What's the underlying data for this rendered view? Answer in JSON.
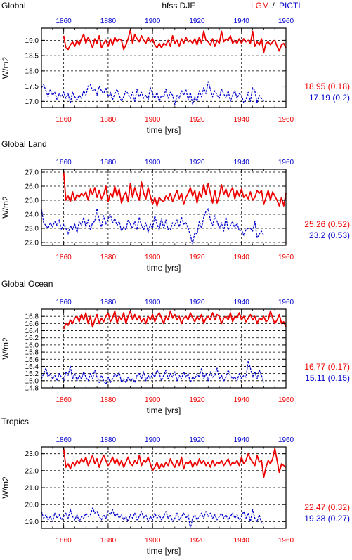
{
  "header": {
    "left": "Global",
    "center": "hfss DJF",
    "legend_lgm": "LGM",
    "legend_sep": "/",
    "legend_pictl": "PICTL"
  },
  "colors": {
    "lgm": "#ee0000",
    "pictl": "#0000cc",
    "text": "#000000",
    "grid": "#000000"
  },
  "chart_data": [
    {
      "type": "line",
      "title": "Global",
      "xlabel": "time [yrs]",
      "ylabel": "W/m2",
      "xlim": [
        1850,
        1960
      ],
      "ylim": [
        16.8,
        19.4
      ],
      "xticks": [
        "1860",
        "1880",
        "1900",
        "1920",
        "1940",
        "1960"
      ],
      "yticks": [
        "17.0",
        "17.5",
        "18.0",
        "18.5",
        "19.0"
      ],
      "grid": true,
      "series": [
        {
          "name": "LGM",
          "x_start": 1860,
          "values": [
            19.15,
            18.75,
            18.7,
            18.85,
            18.95,
            18.8,
            19.0,
            18.85,
            19.05,
            19.2,
            18.9,
            19.1,
            18.95,
            18.75,
            19.05,
            18.9,
            19.15,
            18.75,
            18.9,
            19.0,
            18.8,
            19.05,
            18.85,
            19.1,
            18.95,
            19.05,
            19.0,
            18.7,
            18.85,
            19.05,
            19.35,
            18.9,
            19.2,
            19.05,
            18.95,
            19.15,
            19.0,
            18.9,
            19.1,
            18.95,
            19.05,
            18.85,
            18.75,
            18.9,
            18.75,
            18.9,
            18.85,
            19.0,
            18.8,
            19.15,
            18.9,
            19.0,
            18.8,
            19.05,
            18.9,
            19.1,
            18.95,
            19.0,
            18.9,
            19.05,
            18.85,
            19.1,
            18.9,
            19.3,
            19.0,
            18.95,
            18.85,
            19.05,
            18.8,
            19.0,
            18.9,
            19.3,
            18.95,
            19.05,
            19.0,
            19.15,
            18.9,
            19.0,
            18.9,
            19.05,
            18.9,
            19.05,
            18.95,
            19.0,
            18.9,
            19.3,
            18.8,
            18.95,
            18.85,
            19.05,
            18.6,
            18.9,
            18.95,
            18.85,
            18.95,
            19.0,
            18.8,
            18.65,
            18.85,
            18.9,
            18.75
          ]
        },
        {
          "name": "PICTL",
          "x_start": 1850,
          "values": [
            17.45,
            17.55,
            17.35,
            17.15,
            17.4,
            17.2,
            17.3,
            17.05,
            17.25,
            17.15,
            17.3,
            17.1,
            17.25,
            16.95,
            17.3,
            17.15,
            17.05,
            17.2,
            17.1,
            17.35,
            17.2,
            17.5,
            17.55,
            17.35,
            17.4,
            17.2,
            17.5,
            17.35,
            17.25,
            17.45,
            17.15,
            17.3,
            17.05,
            17.25,
            17.4,
            17.2,
            17.0,
            17.15,
            17.35,
            17.25,
            17.1,
            17.3,
            17.0,
            17.4,
            17.15,
            17.3,
            17.1,
            17.2,
            17.05,
            17.45,
            17.25,
            17.1,
            17.3,
            17.0,
            17.2,
            17.15,
            17.4,
            17.1,
            17.3,
            17.2,
            16.9,
            17.2,
            17.1,
            17.35,
            17.2,
            17.4,
            17.05,
            17.3,
            16.9,
            17.15,
            17.0,
            17.35,
            17.15,
            17.45,
            17.25,
            17.65,
            17.4,
            17.15,
            17.35,
            17.2,
            17.1,
            17.4,
            17.25,
            17.1,
            17.35,
            17.0,
            17.2,
            17.35,
            17.1,
            17.25,
            17.2,
            16.95,
            17.05,
            17.3,
            17.0,
            17.45,
            17.35,
            16.95,
            17.2,
            17.1,
            17.0
          ]
        }
      ],
      "stats": {
        "lgm": "18.95 (0.18)",
        "pictl": "17.19 (0.2)"
      }
    },
    {
      "type": "line",
      "title": "Global Land",
      "xlabel": "time [yrs]",
      "ylabel": "W/m2",
      "xlim": [
        1850,
        1960
      ],
      "ylim": [
        21.8,
        27.2
      ],
      "xticks": [
        "1860",
        "1880",
        "1900",
        "1920",
        "1940",
        "1960"
      ],
      "yticks": [
        "22.0",
        "23.0",
        "24.0",
        "25.0",
        "26.0",
        "27.0"
      ],
      "grid": true,
      "series": [
        {
          "name": "LGM",
          "x_start": 1860,
          "values": [
            27.0,
            25.0,
            25.3,
            24.9,
            25.6,
            25.0,
            25.4,
            25.2,
            25.5,
            25.3,
            25.6,
            25.0,
            25.8,
            25.4,
            25.9,
            25.2,
            25.7,
            25.1,
            25.4,
            26.0,
            24.9,
            25.5,
            25.2,
            26.0,
            25.3,
            25.8,
            24.8,
            25.3,
            25.6,
            24.9,
            26.2,
            25.2,
            25.9,
            25.4,
            25.0,
            26.3,
            25.5,
            25.1,
            25.9,
            25.3,
            24.7,
            25.2,
            24.6,
            25.2,
            25.0,
            24.9,
            25.3,
            25.1,
            25.5,
            24.9,
            25.3,
            25.7,
            25.1,
            25.5,
            24.7,
            25.2,
            25.5,
            25.9,
            25.3,
            25.7,
            24.8,
            25.6,
            25.2,
            26.1,
            25.4,
            26.2,
            25.5,
            24.8,
            25.7,
            24.8,
            25.3,
            26.1,
            25.4,
            25.8,
            25.2,
            25.6,
            25.9,
            25.1,
            25.7,
            25.3,
            25.8,
            25.2,
            25.4,
            25.1,
            25.6,
            25.0,
            25.2,
            25.7,
            25.5,
            25.7,
            24.7,
            25.2,
            25.7,
            25.0,
            25.6,
            25.3,
            25.0,
            24.6,
            25.2,
            24.6,
            25.5
          ]
        },
        {
          "name": "PICTL",
          "x_start": 1850,
          "values": [
            24.4,
            23.4,
            23.2,
            23.0,
            23.4,
            23.1,
            23.5,
            23.2,
            23.6,
            22.9,
            23.3,
            23.0,
            22.6,
            23.2,
            22.9,
            23.3,
            22.7,
            23.5,
            23.2,
            23.8,
            23.1,
            23.6,
            22.9,
            23.4,
            23.5,
            24.4,
            23.6,
            23.1,
            23.9,
            23.3,
            23.7,
            24.0,
            23.4,
            23.7,
            23.2,
            23.5,
            22.8,
            23.1,
            22.9,
            23.6,
            23.3,
            23.0,
            23.5,
            22.9,
            23.8,
            23.2,
            22.9,
            23.4,
            22.7,
            23.3,
            23.0,
            23.9,
            23.3,
            22.9,
            23.7,
            23.0,
            23.6,
            22.9,
            22.9,
            23.4,
            23.2,
            23.6,
            23.1,
            23.8,
            23.3,
            23.4,
            23.0,
            22.5,
            21.9,
            22.7,
            22.6,
            23.5,
            23.0,
            23.8,
            24.2,
            24.4,
            23.6,
            23.2,
            23.9,
            23.5,
            23.0,
            23.4,
            22.8,
            23.8,
            22.9,
            23.2,
            23.5,
            23.0,
            23.4,
            22.8,
            22.9,
            22.5,
            22.9,
            23.0,
            23.0,
            22.8,
            23.5,
            22.3,
            22.6,
            22.8,
            22.5
          ]
        }
      ],
      "stats": {
        "lgm": "25.26 (0.52)",
        "pictl": "23.2 (0.53)"
      }
    },
    {
      "type": "line",
      "title": "Global Ocean",
      "xlabel": "time [yrs]",
      "ylabel": "W/m2",
      "xlim": [
        1850,
        1960
      ],
      "ylim": [
        14.8,
        17.0
      ],
      "xticks": [
        "1860",
        "1880",
        "1900",
        "1920",
        "1940",
        "1960"
      ],
      "yticks": [
        "14.8",
        "15.0",
        "15.2",
        "15.4",
        "15.6",
        "15.8",
        "16.0",
        "16.2",
        "16.4",
        "16.6",
        "16.8"
      ],
      "grid": true,
      "series": [
        {
          "name": "LGM",
          "x_start": 1860,
          "values": [
            16.45,
            16.6,
            16.55,
            16.7,
            16.6,
            16.75,
            16.8,
            16.65,
            16.85,
            16.7,
            16.9,
            16.6,
            16.8,
            16.5,
            16.7,
            16.85,
            16.6,
            16.75,
            16.65,
            16.8,
            16.9,
            16.65,
            16.75,
            16.95,
            16.6,
            16.8,
            16.7,
            16.9,
            16.6,
            16.8,
            16.95,
            16.7,
            16.85,
            16.7,
            16.8,
            16.65,
            16.75,
            16.6,
            16.8,
            16.7,
            16.85,
            16.65,
            16.8,
            16.9,
            16.75,
            16.6,
            16.8,
            16.7,
            16.95,
            16.75,
            16.85,
            16.7,
            16.8,
            16.6,
            16.75,
            16.8,
            16.7,
            16.9,
            16.75,
            16.65,
            16.8,
            16.7,
            16.85,
            16.6,
            16.75,
            16.8,
            16.7,
            16.9,
            16.7,
            16.85,
            16.8,
            16.6,
            16.75,
            16.8,
            16.7,
            16.9,
            16.65,
            16.8,
            16.75,
            16.9,
            16.7,
            16.8,
            16.65,
            16.75,
            16.85,
            16.7,
            16.8,
            16.6,
            16.75,
            16.7,
            16.8,
            16.65,
            16.7,
            16.95,
            16.75,
            16.6,
            16.7,
            16.85,
            16.6,
            16.65,
            16.5
          ]
        },
        {
          "name": "PICTL",
          "x_start": 1850,
          "values": [
            15.05,
            15.2,
            15.35,
            15.1,
            15.2,
            15.05,
            15.15,
            15.0,
            15.2,
            15.1,
            15.0,
            15.25,
            15.15,
            15.4,
            15.05,
            15.2,
            15.0,
            15.15,
            15.05,
            15.25,
            15.1,
            15.0,
            15.2,
            15.05,
            15.3,
            15.1,
            14.95,
            15.15,
            15.0,
            14.9,
            15.1,
            14.95,
            15.05,
            15.2,
            15.1,
            15.25,
            14.95,
            15.05,
            14.95,
            15.1,
            15.0,
            15.05,
            14.95,
            15.15,
            15.2,
            15.05,
            15.25,
            15.0,
            15.15,
            15.05,
            15.2,
            15.1,
            15.3,
            15.2,
            15.0,
            15.15,
            15.3,
            15.05,
            15.2,
            15.1,
            15.25,
            15.0,
            15.15,
            15.05,
            15.25,
            15.1,
            15.2,
            14.95,
            15.1,
            15.05,
            15.2,
            15.1,
            15.35,
            15.05,
            15.2,
            15.0,
            15.25,
            15.1,
            15.15,
            15.35,
            15.05,
            15.15,
            15.0,
            15.1,
            15.3,
            15.15,
            15.05,
            15.1,
            15.0,
            15.2,
            15.05,
            15.15,
            15.1,
            15.55,
            15.35,
            15.1,
            15.25,
            15.05,
            15.3,
            15.15,
            14.95
          ]
        }
      ],
      "stats": {
        "lgm": "16.77 (0.17)",
        "pictl": "15.11 (0.15)"
      }
    },
    {
      "type": "line",
      "title": "Tropics",
      "xlabel": "time [yrs]",
      "ylabel": "W/m2",
      "xlim": [
        1850,
        1960
      ],
      "ylim": [
        18.6,
        23.4
      ],
      "xticks": [
        "1860",
        "1880",
        "1900",
        "1920",
        "1940",
        "1960"
      ],
      "yticks": [
        "19.0",
        "20.0",
        "21.0",
        "22.0",
        "23.0"
      ],
      "grid": true,
      "series": [
        {
          "name": "LGM",
          "x_start": 1860,
          "values": [
            23.3,
            22.2,
            22.4,
            22.1,
            22.5,
            22.3,
            22.6,
            22.4,
            22.7,
            22.5,
            22.8,
            22.3,
            22.6,
            22.9,
            22.4,
            22.7,
            22.2,
            22.6,
            22.9,
            22.6,
            22.3,
            22.5,
            22.8,
            22.4,
            22.7,
            22.3,
            22.6,
            22.2,
            22.5,
            22.8,
            22.4,
            22.3,
            22.6,
            22.4,
            22.9,
            22.3,
            22.6,
            22.5,
            22.8,
            22.4,
            22.0,
            22.2,
            22.5,
            22.1,
            22.4,
            22.2,
            22.5,
            22.3,
            22.7,
            22.4,
            22.2,
            22.6,
            22.3,
            22.8,
            22.1,
            22.5,
            22.4,
            22.6,
            22.2,
            22.5,
            22.3,
            22.7,
            22.4,
            22.6,
            22.3,
            22.5,
            22.2,
            22.6,
            22.3,
            22.5,
            22.4,
            22.6,
            22.3,
            22.5,
            22.7,
            22.3,
            22.5,
            22.4,
            22.6,
            22.3,
            22.8,
            22.4,
            22.6,
            23.0,
            22.7,
            22.5,
            22.3,
            22.9,
            22.5,
            22.6,
            21.6,
            22.2,
            22.6,
            22.4,
            22.7,
            23.3,
            22.6,
            21.9,
            22.4,
            22.3,
            22.2
          ]
        },
        {
          "name": "PICTL",
          "x_start": 1850,
          "values": [
            19.6,
            19.2,
            19.4,
            19.1,
            19.3,
            19.0,
            19.5,
            19.2,
            19.4,
            19.1,
            19.3,
            19.5,
            19.2,
            19.7,
            19.3,
            19.1,
            19.4,
            19.0,
            19.3,
            19.2,
            19.5,
            19.3,
            19.4,
            19.8,
            19.5,
            19.6,
            19.3,
            19.1,
            19.4,
            19.2,
            19.6,
            19.4,
            19.7,
            19.3,
            19.5,
            19.2,
            19.4,
            19.1,
            19.3,
            19.0,
            19.4,
            19.2,
            19.5,
            19.1,
            19.3,
            19.6,
            19.2,
            19.4,
            19.0,
            19.3,
            19.1,
            19.5,
            19.2,
            19.4,
            19.1,
            19.3,
            19.6,
            19.2,
            19.4,
            19.0,
            19.2,
            19.5,
            19.1,
            19.3,
            19.5,
            19.2,
            19.4,
            18.6,
            19.2,
            19.4,
            19.1,
            19.3,
            19.5,
            19.2,
            19.6,
            19.3,
            19.5,
            19.2,
            19.4,
            19.1,
            19.3,
            19.5,
            19.2,
            19.4,
            19.1,
            19.3,
            19.5,
            19.2,
            19.4,
            19.1,
            19.3,
            19.6,
            19.2,
            19.5,
            19.0,
            19.7,
            19.2,
            19.0,
            19.4,
            18.9,
            18.9
          ]
        }
      ],
      "stats": {
        "lgm": "22.47 (0.32)",
        "pictl": "19.38 (0.27)"
      }
    }
  ]
}
